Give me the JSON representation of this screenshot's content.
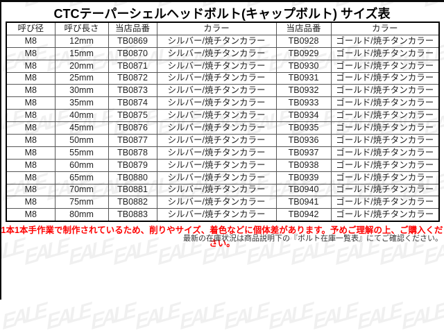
{
  "title": "CTCテーパーシェルヘッドボルト(キャップボルト) サイズ表",
  "table": {
    "headers": [
      "呼び径",
      "呼び長さ",
      "当店品番",
      "カラー",
      "当店品番",
      "カラー"
    ],
    "rows": [
      [
        "M8",
        "12mm",
        "TB0869",
        "シルバー/焼チタンカラー",
        "TB0928",
        "ゴールド/焼チタンカラー"
      ],
      [
        "M8",
        "15mm",
        "TB0870",
        "シルバー/焼チタンカラー",
        "TB0929",
        "ゴールド/焼チタンカラー"
      ],
      [
        "M8",
        "20mm",
        "TB0871",
        "シルバー/焼チタンカラー",
        "TB0930",
        "ゴールド/焼チタンカラー"
      ],
      [
        "M8",
        "25mm",
        "TB0872",
        "シルバー/焼チタンカラー",
        "TB0931",
        "ゴールド/焼チタンカラー"
      ],
      [
        "M8",
        "30mm",
        "TB0873",
        "シルバー/焼チタンカラー",
        "TB0932",
        "ゴールド/焼チタンカラー"
      ],
      [
        "M8",
        "35mm",
        "TB0874",
        "シルバー/焼チタンカラー",
        "TB0933",
        "ゴールド/焼チタンカラー"
      ],
      [
        "M8",
        "40mm",
        "TB0875",
        "シルバー/焼チタンカラー",
        "TB0934",
        "ゴールド/焼チタンカラー"
      ],
      [
        "M8",
        "45mm",
        "TB0876",
        "シルバー/焼チタンカラー",
        "TB0935",
        "ゴールド/焼チタンカラー"
      ],
      [
        "M8",
        "50mm",
        "TB0877",
        "シルバー/焼チタンカラー",
        "TB0936",
        "ゴールド/焼チタンカラー"
      ],
      [
        "M8",
        "55mm",
        "TB0878",
        "シルバー/焼チタンカラー",
        "TB0937",
        "ゴールド/焼チタンカラー"
      ],
      [
        "M8",
        "60mm",
        "TB0879",
        "シルバー/焼チタンカラー",
        "TB0938",
        "ゴールド/焼チタンカラー"
      ],
      [
        "M8",
        "65mm",
        "TB0880",
        "シルバー/焼チタンカラー",
        "TB0939",
        "ゴールド/焼チタンカラー"
      ],
      [
        "M8",
        "70mm",
        "TB0881",
        "シルバー/焼チタンカラー",
        "TB0940",
        "ゴールド/焼チタンカラー"
      ],
      [
        "M8",
        "75mm",
        "TB0882",
        "シルバー/焼チタンカラー",
        "TB0941",
        "ゴールド/焼チタンカラー"
      ],
      [
        "M8",
        "80mm",
        "TB0883",
        "シルバー/焼チタンカラー",
        "TB0942",
        "ゴールド/焼チタンカラー"
      ]
    ]
  },
  "notes": {
    "warning": "1本1本手作業で制作されているため、削りやサイズ、着色などに個体差があります。予めご理解の上、ご購入ください。",
    "stock": "最新の在庫状況は商品説明下の『ボルト在庫一覧表』にてご確認ください。"
  },
  "watermark": {
    "text": "EALE"
  },
  "colors": {
    "warning_red": "#ff0000",
    "outer_border": "#000000",
    "inner_border": "#555555",
    "text": "#222222"
  }
}
